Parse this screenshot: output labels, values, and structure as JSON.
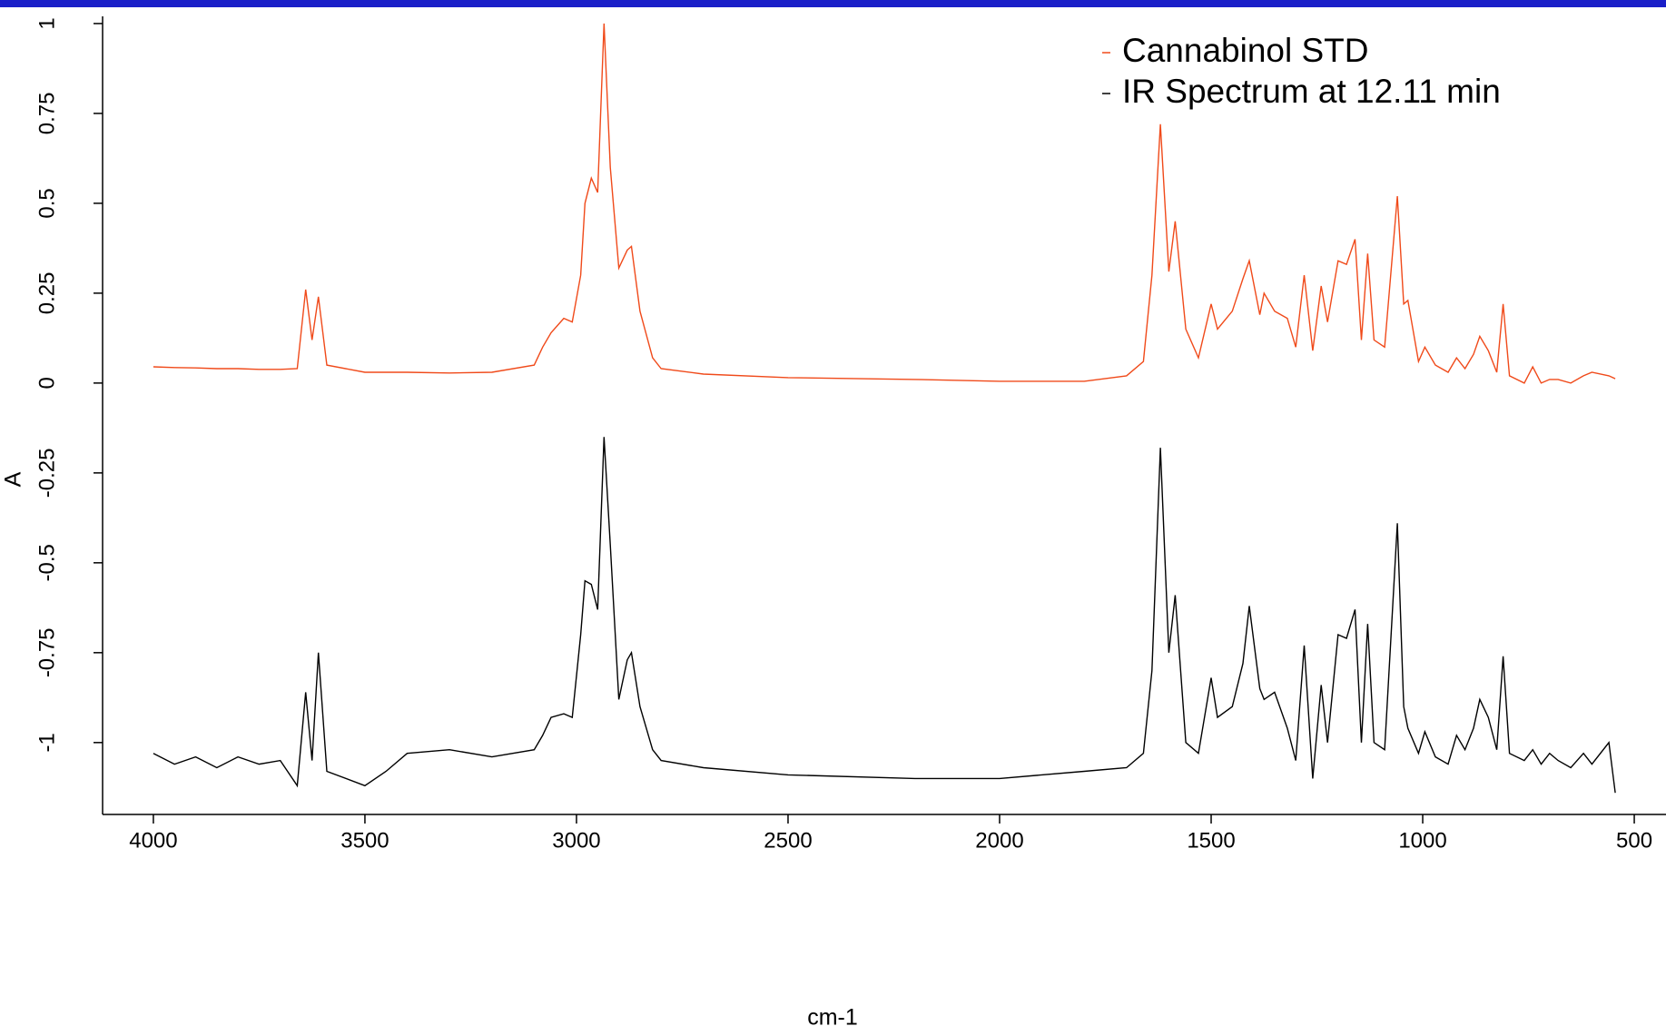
{
  "chart_data": {
    "type": "line",
    "x_label": "cm-1",
    "y_label": "A",
    "x": [
      4000,
      3950,
      3900,
      3850,
      3800,
      3750,
      3700,
      3660,
      3640,
      3625,
      3610,
      3590,
      3500,
      3450,
      3400,
      3300,
      3200,
      3100,
      3080,
      3060,
      3030,
      3010,
      2990,
      2980,
      2965,
      2950,
      2935,
      2920,
      2900,
      2880,
      2870,
      2850,
      2820,
      2800,
      2700,
      2500,
      2200,
      2000,
      1800,
      1700,
      1660,
      1640,
      1620,
      1600,
      1585,
      1560,
      1530,
      1500,
      1485,
      1450,
      1425,
      1410,
      1385,
      1375,
      1350,
      1320,
      1300,
      1280,
      1260,
      1240,
      1225,
      1200,
      1180,
      1160,
      1145,
      1130,
      1115,
      1090,
      1060,
      1045,
      1035,
      1010,
      995,
      970,
      940,
      920,
      900,
      880,
      865,
      845,
      825,
      810,
      795,
      760,
      740,
      720,
      700,
      680,
      650,
      620,
      600,
      560,
      545
    ],
    "series": [
      {
        "name": "Cannabinol STD",
        "color": "#f04a1a",
        "values": [
          0.045,
          0.043,
          0.042,
          0.04,
          0.04,
          0.038,
          0.038,
          0.04,
          0.26,
          0.12,
          0.24,
          0.05,
          0.03,
          0.03,
          0.03,
          0.028,
          0.03,
          0.05,
          0.1,
          0.14,
          0.18,
          0.17,
          0.3,
          0.5,
          0.57,
          0.53,
          1.0,
          0.6,
          0.32,
          0.37,
          0.38,
          0.2,
          0.07,
          0.04,
          0.025,
          0.015,
          0.01,
          0.005,
          0.005,
          0.02,
          0.06,
          0.3,
          0.72,
          0.31,
          0.45,
          0.15,
          0.07,
          0.22,
          0.15,
          0.2,
          0.29,
          0.34,
          0.19,
          0.25,
          0.2,
          0.18,
          0.1,
          0.3,
          0.09,
          0.27,
          0.17,
          0.34,
          0.33,
          0.4,
          0.12,
          0.36,
          0.12,
          0.1,
          0.52,
          0.22,
          0.23,
          0.06,
          0.1,
          0.05,
          0.03,
          0.07,
          0.04,
          0.08,
          0.13,
          0.09,
          0.03,
          0.22,
          0.02,
          0.0,
          0.045,
          0.0,
          0.01,
          0.01,
          0.0,
          0.02,
          0.03,
          0.02,
          0.012
        ]
      },
      {
        "name": "IR Spectrum at 12.11 min",
        "color": "#000000",
        "values": [
          -1.03,
          -1.06,
          -1.04,
          -1.07,
          -1.04,
          -1.06,
          -1.05,
          -1.12,
          -0.86,
          -1.05,
          -0.75,
          -1.08,
          -1.12,
          -1.08,
          -1.03,
          -1.02,
          -1.04,
          -1.02,
          -0.98,
          -0.93,
          -0.92,
          -0.93,
          -0.7,
          -0.55,
          -0.56,
          -0.63,
          -0.15,
          -0.45,
          -0.88,
          -0.77,
          -0.75,
          -0.9,
          -1.02,
          -1.05,
          -1.07,
          -1.09,
          -1.1,
          -1.1,
          -1.08,
          -1.07,
          -1.03,
          -0.8,
          -0.18,
          -0.75,
          -0.59,
          -1.0,
          -1.03,
          -0.82,
          -0.93,
          -0.9,
          -0.78,
          -0.62,
          -0.85,
          -0.88,
          -0.86,
          -0.96,
          -1.05,
          -0.73,
          -1.1,
          -0.84,
          -1.0,
          -0.7,
          -0.71,
          -0.63,
          -1.0,
          -0.67,
          -1.0,
          -1.02,
          -0.39,
          -0.9,
          -0.96,
          -1.03,
          -0.97,
          -1.04,
          -1.06,
          -0.98,
          -1.02,
          -0.96,
          -0.88,
          -0.93,
          -1.02,
          -0.76,
          -1.03,
          -1.05,
          -1.02,
          -1.06,
          -1.03,
          -1.05,
          -1.07,
          -1.03,
          -1.06,
          -1.0,
          -1.14
        ]
      }
    ],
    "xlim": [
      4120,
      425
    ],
    "xticks": [
      4000,
      3500,
      3000,
      2500,
      2000,
      1500,
      1000,
      500
    ],
    "ylim": [
      -1.2,
      1.02
    ],
    "yticks": [
      1,
      0.75,
      0.5,
      0.25,
      0,
      -0.25,
      -0.5,
      -0.75,
      -1
    ],
    "grid": false,
    "legend": "top-right"
  }
}
